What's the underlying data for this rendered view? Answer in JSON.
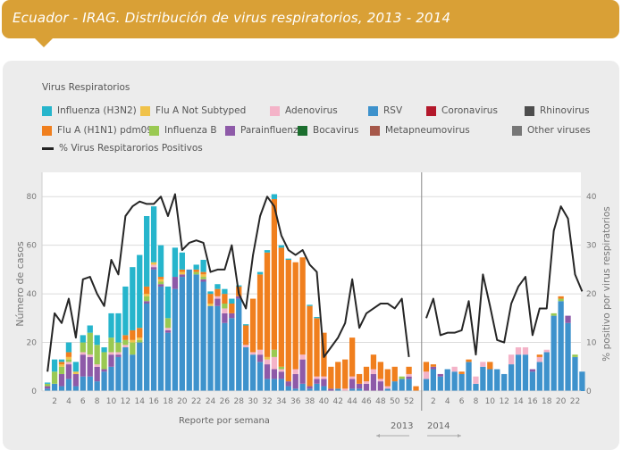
{
  "header": {
    "title": "Ecuador - IRAG. Distribución de virus respiratorios, 2013 - 2014"
  },
  "legend": {
    "title": "Virus Respiratorios",
    "items": [
      {
        "key": "h3n2",
        "label": "Influenza (H3N2)",
        "color": "#26b5cc"
      },
      {
        "key": "flua_ns",
        "label": "Flu A Not Subtyped",
        "color": "#f0c24a"
      },
      {
        "key": "adeno",
        "label": "Adenovirus",
        "color": "#f4b3c8"
      },
      {
        "key": "rsv",
        "label": "RSV",
        "color": "#3e92cc"
      },
      {
        "key": "corona",
        "label": "Coronavirus",
        "color": "#b3182b"
      },
      {
        "key": "rhino",
        "label": "Rhinovirus",
        "color": "#4d4d4d"
      },
      {
        "key": "h1n1",
        "label": "Flu A (H1N1) pdm09",
        "color": "#f07f1e"
      },
      {
        "key": "fluB",
        "label": "Influenza B",
        "color": "#9ac952"
      },
      {
        "key": "para",
        "label": "Parainfluenza",
        "color": "#8e5aa8"
      },
      {
        "key": "boca",
        "label": "Bocavirus",
        "color": "#1b6e2e"
      },
      {
        "key": "metap",
        "label": "Metapneumovirus",
        "color": "#a6584a"
      },
      {
        "key": "other",
        "label": "Other viruses",
        "color": "#777777"
      }
    ],
    "line_label": "% Virus Respitarorios Positivos"
  },
  "chart_data": {
    "type": "bar",
    "subtype": "stacked bar with line overlay",
    "title": "Ecuador - IRAG. Distribución de virus respiratorios, 2013 - 2014",
    "xlabel": "Reporte por semana",
    "ylabel": "Número de casos",
    "y2label": "% positivo por virus respiratorios",
    "ylim": [
      0,
      90
    ],
    "y2lim": [
      0,
      45
    ],
    "yticks": [
      0,
      20,
      40,
      60,
      80
    ],
    "y2ticks": [
      0,
      10,
      20,
      30,
      40
    ],
    "grid": true,
    "year_labels": [
      "2013",
      "2014"
    ],
    "weeks_2013": 52,
    "weeks_2014": 23,
    "xtick_labels_2013": [
      "2",
      "4",
      "6",
      "8",
      "10",
      "12",
      "14",
      "16",
      "18",
      "20",
      "22",
      "24",
      "26",
      "28",
      "30",
      "32",
      "34",
      "36",
      "38",
      "40",
      "42",
      "44",
      "46",
      "48",
      "50",
      "52"
    ],
    "xtick_labels_2014": [
      "2",
      "4",
      "6",
      "8",
      "10",
      "12",
      "14",
      "16",
      "18",
      "20",
      "22"
    ],
    "series_order": [
      "rsv",
      "para",
      "adeno",
      "fluB",
      "flua_ns",
      "h1n1",
      "h3n2"
    ],
    "bars_2013": [
      {
        "rsv": 1,
        "para": 1,
        "adeno": 0,
        "fluB": 1,
        "flua_ns": 0,
        "h1n1": 0,
        "h3n2": 0.5
      },
      {
        "rsv": 3,
        "para": 0,
        "adeno": 0,
        "fluB": 5,
        "flua_ns": 0,
        "h1n1": 0,
        "h3n2": 5
      },
      {
        "rsv": 2,
        "para": 5,
        "adeno": 0,
        "fluB": 3,
        "flua_ns": 1,
        "h1n1": 1,
        "h3n2": 1
      },
      {
        "rsv": 5,
        "para": 6,
        "adeno": 1,
        "fluB": 1,
        "flua_ns": 1,
        "h1n1": 2,
        "h3n2": 4
      },
      {
        "rsv": 2,
        "para": 5,
        "adeno": 0,
        "fluB": 0,
        "flua_ns": 1,
        "h1n1": 0,
        "h3n2": 4
      },
      {
        "rsv": 6,
        "para": 9,
        "adeno": 1,
        "fluB": 4,
        "flua_ns": 0,
        "h1n1": 0,
        "h3n2": 3
      },
      {
        "rsv": 6,
        "para": 8,
        "adeno": 1,
        "fluB": 9,
        "flua_ns": 0,
        "h1n1": 0,
        "h3n2": 3
      },
      {
        "rsv": 4,
        "para": 6,
        "adeno": 1,
        "fluB": 8,
        "flua_ns": 0,
        "h1n1": 0,
        "h3n2": 4
      },
      {
        "rsv": 8,
        "para": 1,
        "adeno": 0,
        "fluB": 7,
        "flua_ns": 0,
        "h1n1": 0,
        "h3n2": 2
      },
      {
        "rsv": 10,
        "para": 5,
        "adeno": 1,
        "fluB": 6,
        "flua_ns": 0,
        "h1n1": 0,
        "h3n2": 10
      },
      {
        "rsv": 14,
        "para": 1,
        "adeno": 1,
        "fluB": 4,
        "flua_ns": 0,
        "h1n1": 0,
        "h3n2": 12
      },
      {
        "rsv": 18,
        "para": 0,
        "adeno": 1,
        "fluB": 2,
        "flua_ns": 0,
        "h1n1": 2,
        "h3n2": 20
      },
      {
        "rsv": 15,
        "para": 0,
        "adeno": 0,
        "fluB": 5,
        "flua_ns": 1,
        "h1n1": 4,
        "h3n2": 26
      },
      {
        "rsv": 20,
        "para": 0,
        "adeno": 0,
        "fluB": 1,
        "flua_ns": 1,
        "h1n1": 4,
        "h3n2": 30
      },
      {
        "rsv": 36,
        "para": 1,
        "adeno": 0,
        "fluB": 2,
        "flua_ns": 1,
        "h1n1": 3,
        "h3n2": 29
      },
      {
        "rsv": 50,
        "para": 1,
        "adeno": 1,
        "fluB": 0,
        "flua_ns": 1,
        "h1n1": 0,
        "h3n2": 23
      },
      {
        "rsv": 43,
        "para": 1,
        "adeno": 0,
        "fluB": 1,
        "flua_ns": 1,
        "h1n1": 1,
        "h3n2": 13
      },
      {
        "rsv": 24,
        "para": 1,
        "adeno": 1,
        "fluB": 4,
        "flua_ns": 0,
        "h1n1": 0,
        "h3n2": 13
      },
      {
        "rsv": 42,
        "para": 5,
        "adeno": 0,
        "fluB": 0,
        "flua_ns": 0,
        "h1n1": 0,
        "h3n2": 12
      },
      {
        "rsv": 47,
        "para": 1,
        "adeno": 0,
        "fluB": 0,
        "flua_ns": 1,
        "h1n1": 1,
        "h3n2": 7
      },
      {
        "rsv": 50,
        "para": 0,
        "adeno": 0,
        "fluB": 0,
        "flua_ns": 0,
        "h1n1": 0,
        "h3n2": 0
      },
      {
        "rsv": 48,
        "para": 0,
        "adeno": 0,
        "fluB": 1,
        "flua_ns": 0,
        "h1n1": 1,
        "h3n2": 2
      },
      {
        "rsv": 45,
        "para": 1,
        "adeno": 0,
        "fluB": 1,
        "flua_ns": 1,
        "h1n1": 1,
        "h3n2": 5
      },
      {
        "rsv": 35,
        "para": 0,
        "adeno": 0,
        "fluB": 0,
        "flua_ns": 1,
        "h1n1": 4,
        "h3n2": 1
      },
      {
        "rsv": 35,
        "para": 3,
        "adeno": 1,
        "fluB": 0,
        "flua_ns": 0,
        "h1n1": 3,
        "h3n2": 2
      },
      {
        "rsv": 28,
        "para": 4,
        "adeno": 2,
        "fluB": 2,
        "flua_ns": 0,
        "h1n1": 4,
        "h3n2": 2
      },
      {
        "rsv": 30,
        "para": 2,
        "adeno": 0,
        "fluB": 0,
        "flua_ns": 0,
        "h1n1": 4,
        "h3n2": 2
      },
      {
        "rsv": 38,
        "para": 1,
        "adeno": 0,
        "fluB": 0,
        "flua_ns": 0,
        "h1n1": 4,
        "h3n2": 0.5
      },
      {
        "rsv": 18,
        "para": 0,
        "adeno": 1,
        "fluB": 0,
        "flua_ns": 0,
        "h1n1": 8,
        "h3n2": 0.5
      },
      {
        "rsv": 15,
        "para": 0,
        "adeno": 1,
        "fluB": 0,
        "flua_ns": 0,
        "h1n1": 22,
        "h3n2": 0
      },
      {
        "rsv": 12,
        "para": 3,
        "adeno": 2,
        "fluB": 0,
        "flua_ns": 0,
        "h1n1": 31,
        "h3n2": 1
      },
      {
        "rsv": 5,
        "para": 6,
        "adeno": 2,
        "fluB": 0,
        "flua_ns": 1,
        "h1n1": 43,
        "h3n2": 1
      },
      {
        "rsv": 5,
        "para": 4,
        "adeno": 5,
        "fluB": 3,
        "flua_ns": 0,
        "h1n1": 62,
        "h3n2": 2
      },
      {
        "rsv": 5,
        "para": 3,
        "adeno": 1,
        "fluB": 1,
        "flua_ns": 0,
        "h1n1": 49,
        "h3n2": 1
      },
      {
        "rsv": 2,
        "para": 2,
        "adeno": 0,
        "fluB": 0,
        "flua_ns": 0,
        "h1n1": 50,
        "h3n2": 0.5
      },
      {
        "rsv": 1,
        "para": 6,
        "adeno": 2,
        "fluB": 0,
        "flua_ns": 0,
        "h1n1": 44,
        "h3n2": 0
      },
      {
        "rsv": 3,
        "para": 10,
        "adeno": 2,
        "fluB": 0,
        "flua_ns": 0,
        "h1n1": 40,
        "h3n2": 0
      },
      {
        "rsv": 1,
        "para": 1,
        "adeno": 0,
        "fluB": 0,
        "flua_ns": 0,
        "h1n1": 33,
        "h3n2": 0.5
      },
      {
        "rsv": 3,
        "para": 2,
        "adeno": 1,
        "fluB": 0,
        "flua_ns": 0,
        "h1n1": 24,
        "h3n2": 0.5
      },
      {
        "rsv": 2,
        "para": 3,
        "adeno": 1,
        "fluB": 0,
        "flua_ns": 0,
        "h1n1": 18,
        "h3n2": 0
      },
      {
        "rsv": 0,
        "para": 1,
        "adeno": 0,
        "fluB": 0,
        "flua_ns": 0,
        "h1n1": 9,
        "h3n2": 0
      },
      {
        "rsv": 1,
        "para": 0,
        "adeno": 0,
        "fluB": 0,
        "flua_ns": 0,
        "h1n1": 11,
        "h3n2": 0
      },
      {
        "rsv": 0,
        "para": 0,
        "adeno": 1,
        "fluB": 0,
        "flua_ns": 0,
        "h1n1": 12,
        "h3n2": 0
      },
      {
        "rsv": 1,
        "para": 4,
        "adeno": 1,
        "fluB": 0,
        "flua_ns": 0,
        "h1n1": 16,
        "h3n2": 0
      },
      {
        "rsv": 1,
        "para": 2,
        "adeno": 0,
        "fluB": 0,
        "flua_ns": 0,
        "h1n1": 4,
        "h3n2": 0
      },
      {
        "rsv": 0,
        "para": 3,
        "adeno": 1,
        "fluB": 0,
        "flua_ns": 0,
        "h1n1": 6,
        "h3n2": 0
      },
      {
        "rsv": 0,
        "para": 7,
        "adeno": 2,
        "fluB": 0,
        "flua_ns": 0,
        "h1n1": 6,
        "h3n2": 0
      },
      {
        "rsv": 0,
        "para": 4,
        "adeno": 1,
        "fluB": 0,
        "flua_ns": 0,
        "h1n1": 7,
        "h3n2": 0
      },
      {
        "rsv": 1,
        "para": 0,
        "adeno": 1,
        "fluB": 0,
        "flua_ns": 0,
        "h1n1": 7,
        "h3n2": 0
      },
      {
        "rsv": 4,
        "para": 0,
        "adeno": 0,
        "fluB": 0,
        "flua_ns": 0,
        "h1n1": 6,
        "h3n2": 0
      },
      {
        "rsv": 5,
        "para": 0,
        "adeno": 0,
        "fluB": 1,
        "flua_ns": 0,
        "h1n1": 0,
        "h3n2": 0
      },
      {
        "rsv": 5,
        "para": 1,
        "adeno": 1,
        "fluB": 0,
        "flua_ns": 0,
        "h1n1": 3,
        "h3n2": 0
      },
      {
        "rsv": 0,
        "para": 0,
        "adeno": 0,
        "fluB": 0,
        "flua_ns": 0,
        "h1n1": 2,
        "h3n2": 0
      }
    ],
    "bars_2014": [
      {
        "rsv": 5,
        "para": 0,
        "adeno": 3,
        "fluB": 0,
        "flua_ns": 0,
        "h1n1": 4,
        "h3n2": 0
      },
      {
        "rsv": 9,
        "para": 1,
        "adeno": 0,
        "fluB": 0,
        "flua_ns": 0,
        "h1n1": 1,
        "h3n2": 0
      },
      {
        "rsv": 6,
        "para": 1,
        "adeno": 0,
        "fluB": 0,
        "flua_ns": 0,
        "h1n1": 0,
        "h3n2": 0
      },
      {
        "rsv": 9,
        "para": 0,
        "adeno": 0,
        "fluB": 0,
        "flua_ns": 0,
        "h1n1": 0,
        "h3n2": 0
      },
      {
        "rsv": 8,
        "para": 0,
        "adeno": 2,
        "fluB": 0,
        "flua_ns": 0,
        "h1n1": 0,
        "h3n2": 0
      },
      {
        "rsv": 7,
        "para": 0,
        "adeno": 0,
        "fluB": 0,
        "flua_ns": 0,
        "h1n1": 1,
        "h3n2": 0
      },
      {
        "rsv": 12,
        "para": 0,
        "adeno": 0,
        "fluB": 0,
        "flua_ns": 0,
        "h1n1": 1,
        "h3n2": 0
      },
      {
        "rsv": 3,
        "para": 0,
        "adeno": 3,
        "fluB": 0,
        "flua_ns": 0,
        "h1n1": 0,
        "h3n2": 0
      },
      {
        "rsv": 10,
        "para": 0,
        "adeno": 2,
        "fluB": 0,
        "flua_ns": 0,
        "h1n1": 0,
        "h3n2": 0
      },
      {
        "rsv": 9,
        "para": 0,
        "adeno": 0,
        "fluB": 0,
        "flua_ns": 0,
        "h1n1": 3,
        "h3n2": 0
      },
      {
        "rsv": 9,
        "para": 0,
        "adeno": 0,
        "fluB": 0,
        "flua_ns": 0,
        "h1n1": 0,
        "h3n2": 0
      },
      {
        "rsv": 7,
        "para": 0,
        "adeno": 0,
        "fluB": 0,
        "flua_ns": 0,
        "h1n1": 0,
        "h3n2": 0
      },
      {
        "rsv": 11,
        "para": 0,
        "adeno": 4,
        "fluB": 0,
        "flua_ns": 0,
        "h1n1": 0,
        "h3n2": 0
      },
      {
        "rsv": 15,
        "para": 0,
        "adeno": 3,
        "fluB": 0,
        "flua_ns": 0,
        "h1n1": 0,
        "h3n2": 0
      },
      {
        "rsv": 15,
        "para": 0,
        "adeno": 3,
        "fluB": 0,
        "flua_ns": 0,
        "h1n1": 0,
        "h3n2": 0
      },
      {
        "rsv": 8,
        "para": 1,
        "adeno": 0,
        "fluB": 0,
        "flua_ns": 0,
        "h1n1": 0,
        "h3n2": 0
      },
      {
        "rsv": 12,
        "para": 0,
        "adeno": 2,
        "fluB": 0,
        "flua_ns": 0,
        "h1n1": 1,
        "h3n2": 0
      },
      {
        "rsv": 16,
        "para": 0,
        "adeno": 1,
        "fluB": 0,
        "flua_ns": 0,
        "h1n1": 0,
        "h3n2": 0
      },
      {
        "rsv": 31,
        "para": 0,
        "adeno": 0,
        "fluB": 1,
        "flua_ns": 0,
        "h1n1": 0,
        "h3n2": 0
      },
      {
        "rsv": 37,
        "para": 0,
        "adeno": 0,
        "fluB": 1,
        "flua_ns": 0,
        "h1n1": 1,
        "h3n2": 0
      },
      {
        "rsv": 28,
        "para": 3,
        "adeno": 0,
        "fluB": 0,
        "flua_ns": 0,
        "h1n1": 0,
        "h3n2": 0
      },
      {
        "rsv": 14,
        "para": 0,
        "adeno": 0,
        "fluB": 1,
        "flua_ns": 0,
        "h1n1": 0,
        "h3n2": 0
      },
      {
        "rsv": 8,
        "para": 0,
        "adeno": 0,
        "fluB": 0,
        "flua_ns": 0,
        "h1n1": 0,
        "h3n2": 0
      }
    ],
    "pct_positive_2013": [
      4,
      16,
      14,
      19,
      11,
      23,
      23.5,
      20,
      17.5,
      27,
      24,
      36,
      38,
      39,
      38.5,
      38.5,
      40,
      36,
      40.5,
      29,
      30.5,
      31,
      30.5,
      24.5,
      25,
      25,
      30,
      20,
      17,
      28,
      36,
      40,
      38,
      32,
      29,
      28,
      29,
      26,
      24.5,
      7,
      9,
      11,
      14,
      23,
      13,
      16,
      17,
      18,
      18,
      17,
      19,
      7
    ],
    "pct_positive_2014": [
      15,
      19,
      11.5,
      12,
      12,
      12.5,
      18.5,
      7.5,
      24,
      17.5,
      10.5,
      10,
      18,
      21.5,
      23.5,
      11.5,
      17,
      17,
      33,
      38,
      35.5,
      24,
      20.5
    ]
  }
}
